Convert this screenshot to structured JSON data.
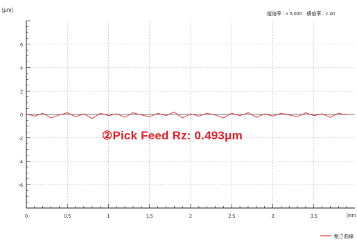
{
  "chart_data": {
    "type": "line",
    "title": "",
    "xlabel": "",
    "ylabel": "",
    "y_unit_label": "[μm]",
    "x_unit_label": "[mm",
    "scale_text": "縦倍率 : × 5,000　横倍率 : × 40",
    "xlim": [
      0,
      4
    ],
    "ylim": [
      -8,
      8
    ],
    "x_ticks": [
      {
        "value": 0,
        "label": "0"
      },
      {
        "value": 0.5,
        "label": "0.5"
      },
      {
        "value": 1,
        "label": "1"
      },
      {
        "value": 1.5,
        "label": "1.5"
      },
      {
        "value": 2,
        "label": "2"
      },
      {
        "value": 2.5,
        "label": "2.5"
      },
      {
        "value": 3,
        "label": "3"
      },
      {
        "value": 3.5,
        "label": "3.5"
      }
    ],
    "y_ticks": [
      {
        "value": 6,
        "label": "6"
      },
      {
        "value": 4,
        "label": "4"
      },
      {
        "value": 2,
        "label": "2"
      },
      {
        "value": 0,
        "label": "0"
      },
      {
        "value": -2,
        "label": "-2"
      },
      {
        "value": -4,
        "label": "-4"
      },
      {
        "value": -6,
        "label": "-6"
      }
    ],
    "grid": true,
    "series": [
      {
        "name": "粗さ曲線",
        "color": "#e23b3b",
        "x": [
          0,
          0.1,
          0.2,
          0.3,
          0.4,
          0.5,
          0.6,
          0.7,
          0.8,
          0.9,
          1.0,
          1.1,
          1.2,
          1.3,
          1.4,
          1.5,
          1.6,
          1.7,
          1.8,
          1.9,
          2.0,
          2.1,
          2.2,
          2.3,
          2.4,
          2.5,
          2.6,
          2.7,
          2.8,
          2.9,
          3.0,
          3.1,
          3.2,
          3.3,
          3.4,
          3.5,
          3.6,
          3.7,
          3.8,
          3.9
        ],
        "y": [
          0.05,
          -0.15,
          0.1,
          -0.3,
          -0.05,
          0.15,
          -0.2,
          0.05,
          -0.35,
          0.1,
          -0.1,
          0.05,
          -0.25,
          0.15,
          -0.05,
          -0.2,
          0.1,
          -0.1,
          0.2,
          -0.3,
          0.05,
          -0.15,
          0.1,
          -0.05,
          -0.3,
          0.1,
          -0.1,
          0.15,
          -0.25,
          0.05,
          -0.15,
          0.1,
          -0.05,
          -0.2,
          0.15,
          -0.1,
          0.05,
          -0.25,
          0.1,
          -0.05
        ]
      }
    ],
    "annotation": "②Pick Feed Rz: 0.493μm",
    "legend_position": "bottom-right"
  }
}
